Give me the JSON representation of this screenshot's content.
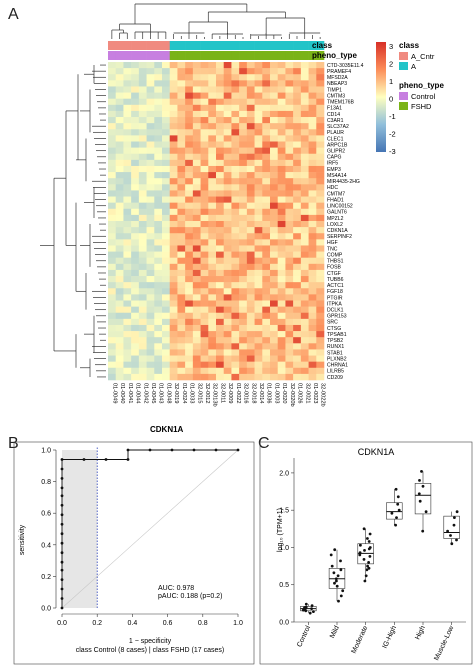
{
  "panels": {
    "a": "A",
    "b": "B",
    "c": "C"
  },
  "heatmap": {
    "annotation_labels": {
      "class": "class",
      "pheno_type": "pheno_type"
    },
    "legend": {
      "scale_ticks": [
        "3",
        "2",
        "1",
        "0",
        "-1",
        "-2",
        "-3"
      ],
      "class_title": "class",
      "class_items": [
        "A_Cntr",
        "A"
      ],
      "pheno_title": "pheno_type",
      "pheno_items": [
        "Control",
        "FSHD"
      ]
    },
    "colors": {
      "class_cntr": "#f08a80",
      "class_a": "#22c4c8",
      "pheno_control": "#c77fe0",
      "pheno_fshd": "#7ab317",
      "low": "#4575b4",
      "mid": "#ffffbf",
      "high": "#d73027"
    },
    "genes": [
      "CTD-3035E11.4",
      "PRAMEF4",
      "MFSD2A",
      "NBEAP3",
      "TIMP1",
      "CMTM3",
      "TMEM176B",
      "F13A1",
      "CD14",
      "C3AR1",
      "SLC37A2",
      "PLAUR",
      "CLEC1",
      "ARPC1B",
      "GLIPR2",
      "CAPG",
      "IRF5",
      "EMP3",
      "MS4A14",
      "MIR4435-2HG",
      "HDC",
      "CMTM7",
      "FHAD1",
      "LINC00152",
      "GALNT6",
      "MPZL2",
      "LOXL2",
      "CDKN1A",
      "SERPINF2",
      "HGF",
      "TNC",
      "COMP",
      "THBS1",
      "FOSB",
      "CTGF",
      "TUBB6",
      "ACTC1",
      "FGF18",
      "PTGIR",
      "ITPKA",
      "DCLK1",
      "GPR153",
      "SRC",
      "CTSG",
      "TPSAB1",
      "TPSB2",
      "RUNX1",
      "STAB1",
      "PLXNB2",
      "CHRNA1",
      "LILRB5",
      "CD209"
    ],
    "samples": [
      "01-0049",
      "01-0040",
      "01-0041",
      "01-0044",
      "01-0042",
      "01-0045",
      "01-0043",
      "01-0048",
      "32-0019",
      "01-0024",
      "01-0033",
      "32-0015",
      "32-0012",
      "32-0013b",
      "32-0011",
      "32-0009",
      "01-0022",
      "32-0016",
      "32-0018",
      "32-0014",
      "01-0036",
      "01-0003",
      "01-0020",
      "32-0020b",
      "01-0026",
      "32-0021",
      "01-0023",
      "32-0022b"
    ],
    "n_control": 8,
    "xlabel": "CDKN1A"
  },
  "chart_data": [
    {
      "type": "line",
      "title": "",
      "xlabel": "1 − specificity",
      "ylabel": "sensitivity",
      "x_ticks": [
        "0.0",
        "0.2",
        "0.4",
        "0.6",
        "0.8",
        "1.0"
      ],
      "y_ticks": [
        "0.0",
        "0.2",
        "0.4",
        "0.6",
        "0.8",
        "1.0"
      ],
      "xlim": [
        0,
        1
      ],
      "ylim": [
        0,
        1
      ],
      "series": [
        {
          "points": [
            [
              0,
              0
            ],
            [
              0,
              0.06
            ],
            [
              0,
              0.12
            ],
            [
              0,
              0.18
            ],
            [
              0,
              0.24
            ],
            [
              0,
              0.29
            ],
            [
              0,
              0.35
            ],
            [
              0,
              0.41
            ],
            [
              0,
              0.47
            ],
            [
              0,
              0.53
            ],
            [
              0,
              0.59
            ],
            [
              0,
              0.65
            ],
            [
              0,
              0.71
            ],
            [
              0,
              0.76
            ],
            [
              0,
              0.82
            ],
            [
              0,
              0.88
            ],
            [
              0,
              0.94
            ],
            [
              0.125,
              0.94
            ],
            [
              0.25,
              0.94
            ],
            [
              0.375,
              0.94
            ],
            [
              0.375,
              1.0
            ],
            [
              0.5,
              1.0
            ],
            [
              0.625,
              1.0
            ],
            [
              0.75,
              1.0
            ],
            [
              0.875,
              1.0
            ],
            [
              1.0,
              1.0
            ]
          ]
        }
      ],
      "partial_auc_region": [
        0,
        0.2
      ],
      "annotations": [
        "AUC: 0.978",
        "pAUC: 0.188 (p=0.2)"
      ],
      "caption": "class Control (8 cases) | class FSHD (17 cases)"
    },
    {
      "type": "box",
      "title": "CDKN1A",
      "ylabel": "log₁₀ (TPM+1)",
      "ylim": [
        0,
        2.2
      ],
      "y_ticks": [
        "0.0",
        "0.5",
        "1.0",
        "1.5",
        "2.0"
      ],
      "categories": [
        "Control",
        "Mild",
        "Moderate",
        "IG-High",
        "High",
        "Muscle-Low"
      ],
      "boxes": [
        {
          "q1": 0.15,
          "median": 0.18,
          "q3": 0.21,
          "low": 0.12,
          "high": 0.24,
          "points": [
            0.12,
            0.14,
            0.15,
            0.16,
            0.17,
            0.18,
            0.19,
            0.2,
            0.22,
            0.24
          ]
        },
        {
          "q1": 0.45,
          "median": 0.58,
          "q3": 0.72,
          "low": 0.28,
          "high": 0.97,
          "points": [
            0.28,
            0.35,
            0.42,
            0.48,
            0.52,
            0.55,
            0.58,
            0.62,
            0.66,
            0.7,
            0.75,
            0.82,
            0.9,
            0.97
          ]
        },
        {
          "q1": 0.78,
          "median": 0.92,
          "q3": 1.05,
          "low": 0.55,
          "high": 1.25,
          "points": [
            0.55,
            0.62,
            0.7,
            0.75,
            0.8,
            0.84,
            0.88,
            0.9,
            0.93,
            0.96,
            1.0,
            1.03,
            1.08,
            1.12,
            1.18,
            1.25,
            0.72,
            0.98
          ]
        },
        {
          "q1": 1.38,
          "median": 1.48,
          "q3": 1.6,
          "low": 1.3,
          "high": 1.78,
          "points": [
            1.3,
            1.4,
            1.46,
            1.5,
            1.58,
            1.68,
            1.78
          ]
        },
        {
          "q1": 1.45,
          "median": 1.7,
          "q3": 1.86,
          "low": 1.22,
          "high": 2.02,
          "points": [
            1.22,
            1.48,
            1.62,
            1.72,
            1.82,
            1.9,
            2.02
          ]
        },
        {
          "q1": 1.12,
          "median": 1.2,
          "q3": 1.42,
          "low": 1.05,
          "high": 1.48,
          "points": [
            1.05,
            1.1,
            1.16,
            1.22,
            1.3,
            1.4,
            1.48
          ]
        }
      ]
    }
  ]
}
